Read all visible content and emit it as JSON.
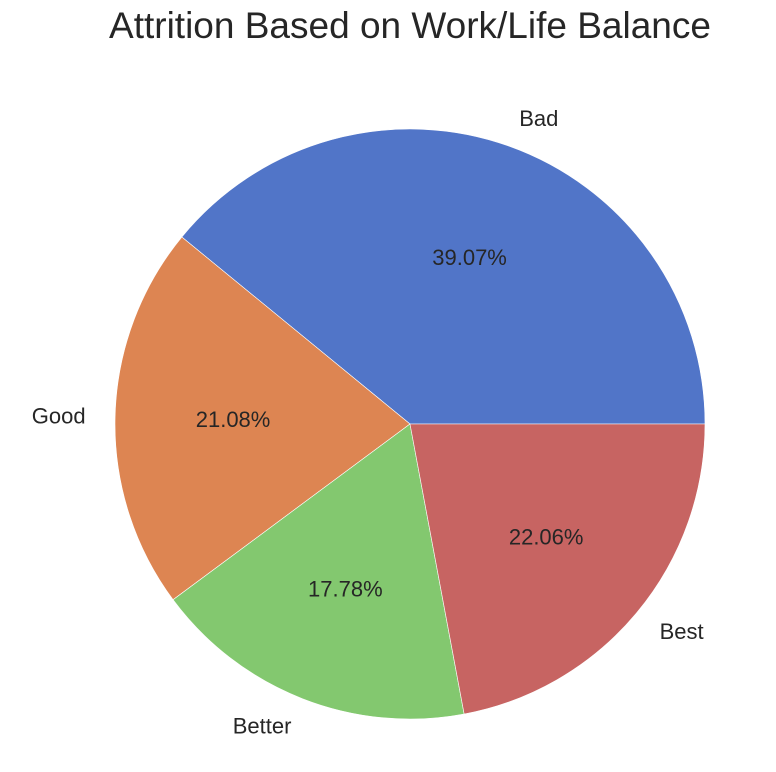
{
  "chart_data": {
    "type": "pie",
    "title": "Attrition Based on Work/Life Balance",
    "categories": [
      "Bad",
      "Good",
      "Better",
      "Best"
    ],
    "values": [
      39.07,
      21.08,
      17.78,
      22.06
    ],
    "value_labels": [
      "39.07%",
      "21.08%",
      "17.78%",
      "22.06%"
    ],
    "colors": [
      "#5175c8",
      "#dd8552",
      "#83c86f",
      "#c76462"
    ],
    "start_angle_deg": 0,
    "direction": "counterclockwise"
  }
}
